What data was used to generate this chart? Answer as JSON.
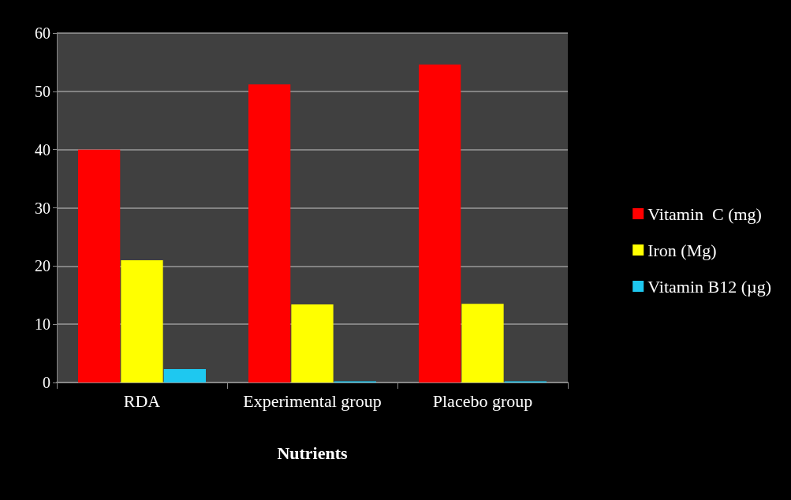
{
  "chart_data": {
    "type": "bar",
    "xlabel": "Nutrients",
    "categories": [
      "RDA",
      "Experimental group",
      "Placebo group"
    ],
    "series": [
      {
        "name": "Vitamin  C (mg)",
        "color": "#ff0000",
        "values": [
          40,
          51.2,
          54.6
        ]
      },
      {
        "name": "Iron (Mg)",
        "color": "#ffff00",
        "values": [
          21,
          13.4,
          13.5
        ]
      },
      {
        "name": "Vitamin B12 (µg)",
        "color": "#1ec8f0",
        "values": [
          2.3,
          0.2,
          0.2
        ]
      }
    ],
    "ylim": [
      0,
      60
    ],
    "yticks": [
      0,
      10,
      20,
      30,
      40,
      50,
      60
    ],
    "grid": "y",
    "legend": "right"
  }
}
